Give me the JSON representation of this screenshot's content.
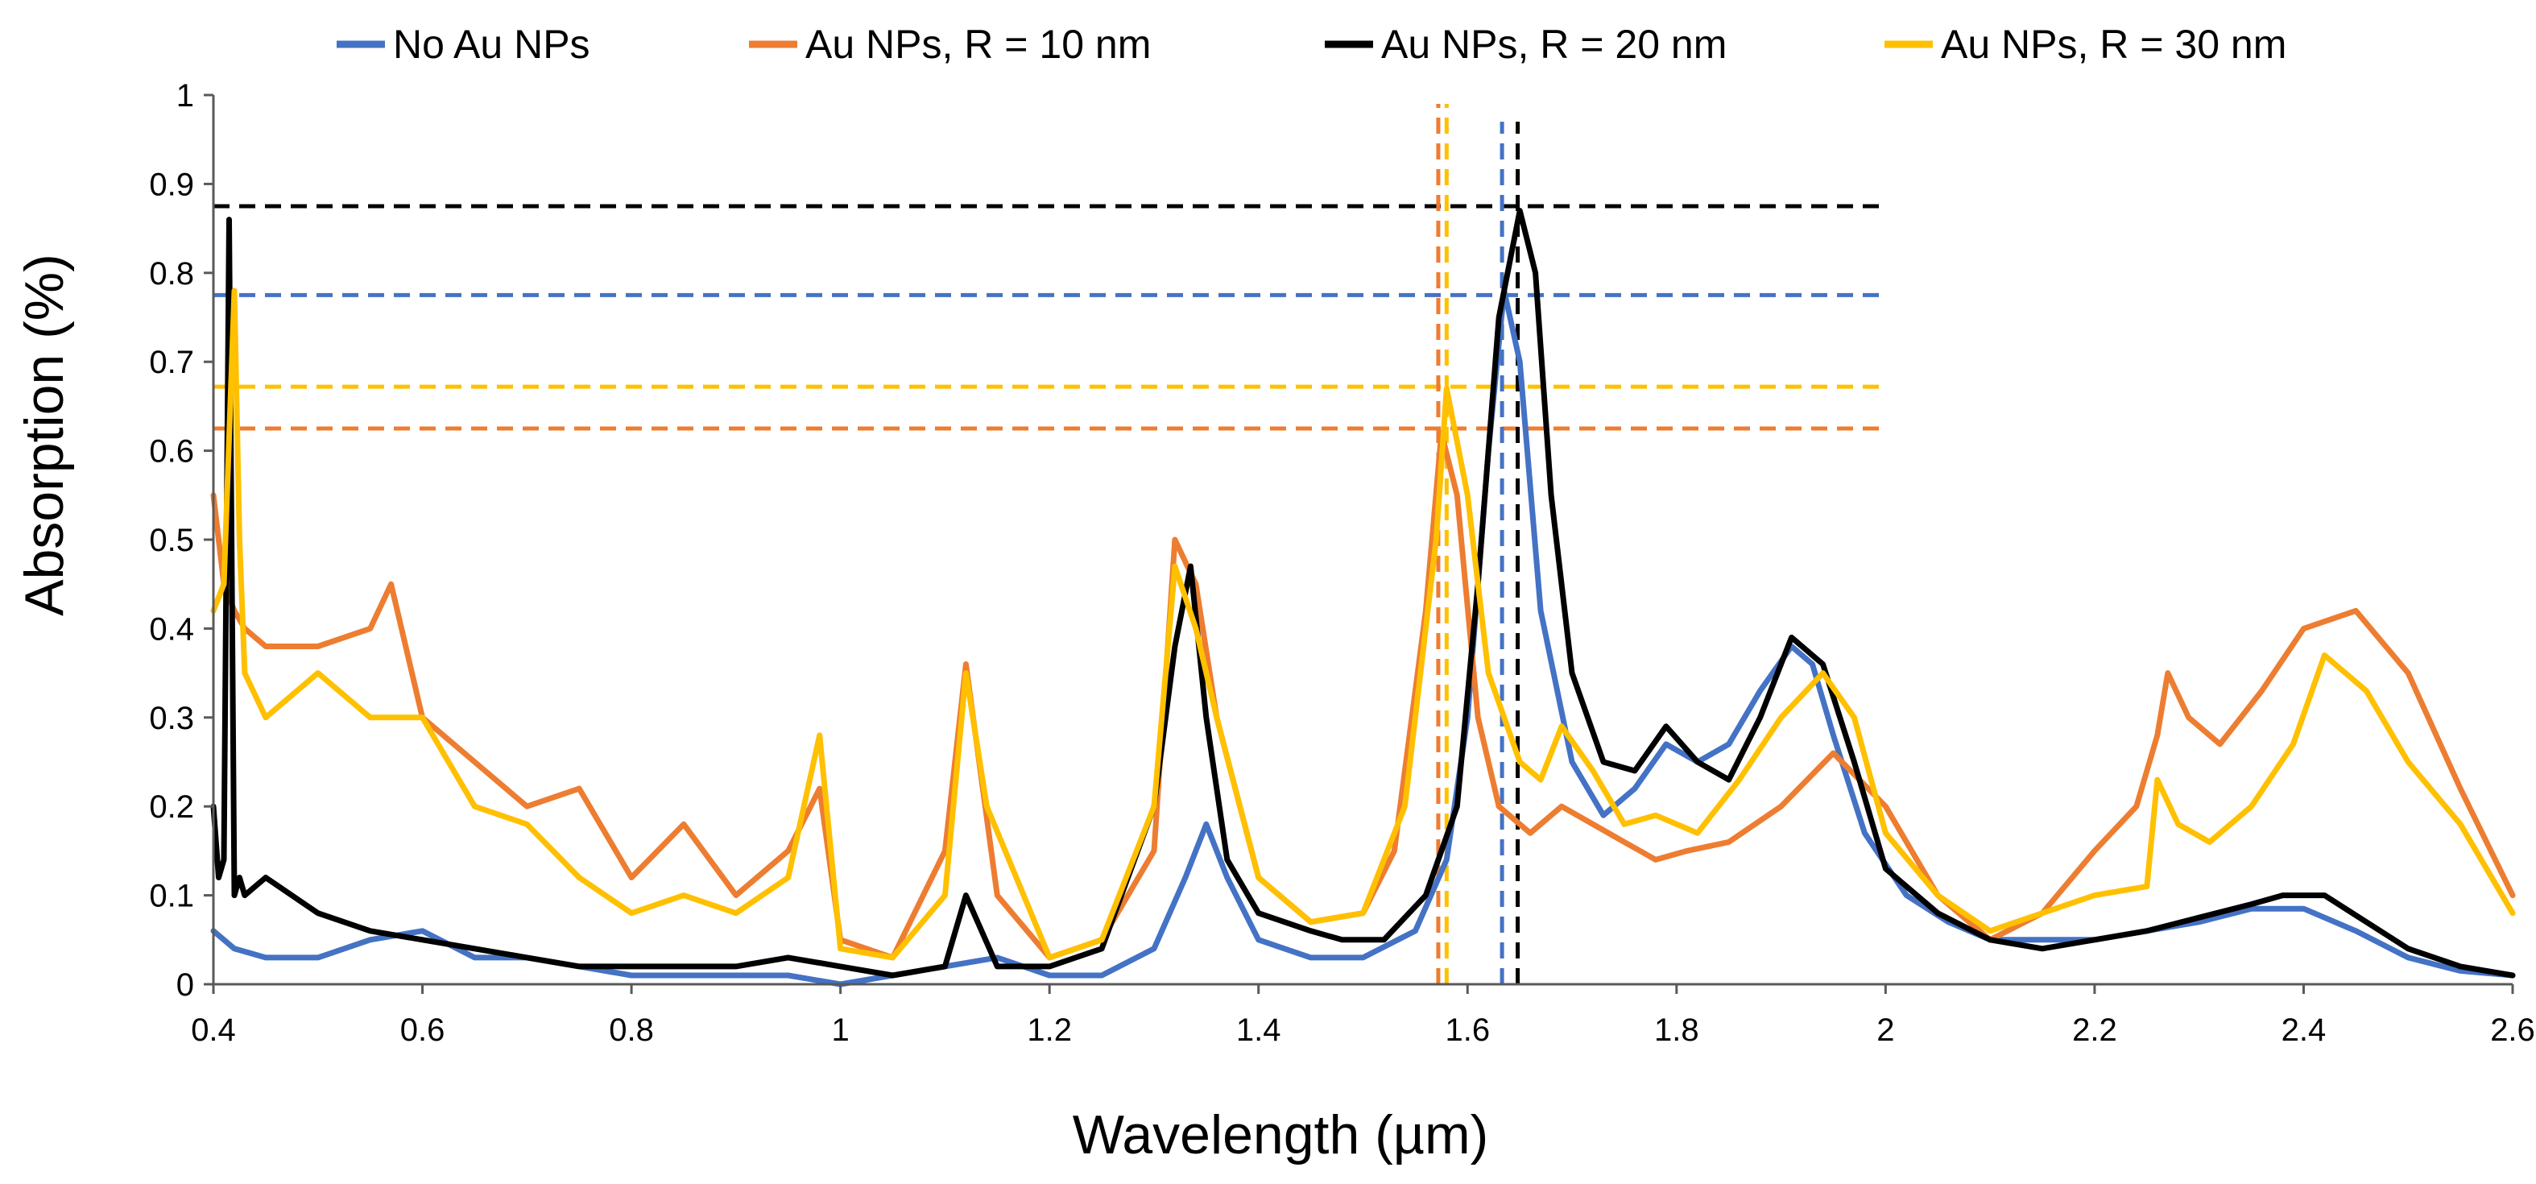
{
  "chart_data": {
    "type": "line",
    "title": "",
    "xlabel": "Wavelength (µm)",
    "ylabel": "Absorption (%)",
    "xlim": [
      0.4,
      2.6
    ],
    "ylim": [
      0,
      1
    ],
    "x_ticks": [
      "0.4",
      "0.6",
      "0.8",
      "1",
      "1.2",
      "1.4",
      "1.6",
      "1.8",
      "2",
      "2.2",
      "2.4",
      "2.6"
    ],
    "y_ticks": [
      "0",
      "0.1",
      "0.2",
      "0.3",
      "0.4",
      "0.5",
      "0.6",
      "0.7",
      "0.8",
      "0.9",
      "1"
    ],
    "legend_position": "top",
    "series": [
      {
        "name": "No Au NPs",
        "color": "#4472C4",
        "x": [
          0.4,
          0.41,
          0.42,
          0.45,
          0.5,
          0.55,
          0.6,
          0.65,
          0.7,
          0.75,
          0.8,
          0.85,
          0.9,
          0.95,
          1.0,
          1.05,
          1.1,
          1.15,
          1.2,
          1.25,
          1.3,
          1.33,
          1.35,
          1.37,
          1.4,
          1.45,
          1.5,
          1.55,
          1.58,
          1.6,
          1.62,
          1.635,
          1.65,
          1.67,
          1.7,
          1.73,
          1.76,
          1.79,
          1.82,
          1.85,
          1.88,
          1.91,
          1.93,
          1.95,
          1.98,
          2.02,
          2.06,
          2.1,
          2.15,
          2.2,
          2.25,
          2.3,
          2.35,
          2.4,
          2.45,
          2.5,
          2.55,
          2.6
        ],
        "y": [
          0.06,
          0.05,
          0.04,
          0.03,
          0.03,
          0.05,
          0.06,
          0.03,
          0.03,
          0.02,
          0.01,
          0.01,
          0.01,
          0.01,
          0.0,
          0.01,
          0.02,
          0.03,
          0.01,
          0.01,
          0.04,
          0.12,
          0.18,
          0.12,
          0.05,
          0.03,
          0.03,
          0.06,
          0.14,
          0.3,
          0.6,
          0.78,
          0.7,
          0.42,
          0.25,
          0.19,
          0.22,
          0.27,
          0.25,
          0.27,
          0.33,
          0.38,
          0.36,
          0.28,
          0.17,
          0.1,
          0.07,
          0.05,
          0.05,
          0.05,
          0.06,
          0.07,
          0.085,
          0.085,
          0.06,
          0.03,
          0.015,
          0.01
        ]
      },
      {
        "name": "Au NPs, R = 10 nm",
        "color": "#ED7D31",
        "x": [
          0.4,
          0.41,
          0.42,
          0.43,
          0.45,
          0.5,
          0.55,
          0.57,
          0.6,
          0.65,
          0.7,
          0.75,
          0.8,
          0.85,
          0.9,
          0.95,
          0.98,
          1.0,
          1.05,
          1.1,
          1.12,
          1.15,
          1.2,
          1.25,
          1.3,
          1.32,
          1.34,
          1.36,
          1.4,
          1.45,
          1.5,
          1.53,
          1.56,
          1.575,
          1.59,
          1.61,
          1.63,
          1.66,
          1.69,
          1.72,
          1.75,
          1.78,
          1.81,
          1.85,
          1.9,
          1.95,
          2.0,
          2.05,
          2.1,
          2.15,
          2.2,
          2.24,
          2.26,
          2.27,
          2.29,
          2.32,
          2.36,
          2.4,
          2.45,
          2.5,
          2.55,
          2.6
        ],
        "y": [
          0.55,
          0.45,
          0.42,
          0.4,
          0.38,
          0.38,
          0.4,
          0.45,
          0.3,
          0.25,
          0.2,
          0.22,
          0.12,
          0.18,
          0.1,
          0.15,
          0.22,
          0.05,
          0.03,
          0.15,
          0.36,
          0.1,
          0.03,
          0.05,
          0.15,
          0.5,
          0.45,
          0.3,
          0.12,
          0.07,
          0.08,
          0.15,
          0.42,
          0.62,
          0.55,
          0.3,
          0.2,
          0.17,
          0.2,
          0.18,
          0.16,
          0.14,
          0.15,
          0.16,
          0.2,
          0.26,
          0.2,
          0.1,
          0.05,
          0.08,
          0.15,
          0.2,
          0.28,
          0.35,
          0.3,
          0.27,
          0.33,
          0.4,
          0.42,
          0.35,
          0.22,
          0.1
        ]
      },
      {
        "name": "Au NPs, R = 20 nm",
        "color": "#000000",
        "x": [
          0.4,
          0.405,
          0.41,
          0.415,
          0.42,
          0.425,
          0.43,
          0.45,
          0.5,
          0.55,
          0.6,
          0.65,
          0.7,
          0.75,
          0.8,
          0.85,
          0.9,
          0.95,
          1.0,
          1.05,
          1.1,
          1.12,
          1.15,
          1.2,
          1.25,
          1.3,
          1.32,
          1.335,
          1.35,
          1.37,
          1.4,
          1.45,
          1.48,
          1.52,
          1.56,
          1.59,
          1.61,
          1.63,
          1.65,
          1.665,
          1.68,
          1.7,
          1.73,
          1.76,
          1.79,
          1.82,
          1.85,
          1.88,
          1.91,
          1.94,
          1.97,
          2.0,
          2.05,
          2.1,
          2.15,
          2.2,
          2.25,
          2.3,
          2.35,
          2.38,
          2.42,
          2.46,
          2.5,
          2.55,
          2.6
        ],
        "y": [
          0.2,
          0.12,
          0.14,
          0.86,
          0.1,
          0.12,
          0.1,
          0.12,
          0.08,
          0.06,
          0.05,
          0.04,
          0.03,
          0.02,
          0.02,
          0.02,
          0.02,
          0.03,
          0.02,
          0.01,
          0.02,
          0.1,
          0.02,
          0.02,
          0.04,
          0.2,
          0.38,
          0.47,
          0.3,
          0.14,
          0.08,
          0.06,
          0.05,
          0.05,
          0.1,
          0.2,
          0.45,
          0.75,
          0.87,
          0.8,
          0.55,
          0.35,
          0.25,
          0.24,
          0.29,
          0.25,
          0.23,
          0.3,
          0.39,
          0.36,
          0.25,
          0.13,
          0.08,
          0.05,
          0.04,
          0.05,
          0.06,
          0.075,
          0.09,
          0.1,
          0.1,
          0.07,
          0.04,
          0.02,
          0.01
        ]
      },
      {
        "name": "Au NPs, R = 30 nm",
        "color": "#FFC000",
        "x": [
          0.4,
          0.41,
          0.42,
          0.425,
          0.43,
          0.45,
          0.5,
          0.55,
          0.6,
          0.65,
          0.7,
          0.75,
          0.8,
          0.85,
          0.9,
          0.95,
          0.98,
          1.0,
          1.05,
          1.1,
          1.12,
          1.14,
          1.2,
          1.25,
          1.3,
          1.32,
          1.34,
          1.36,
          1.4,
          1.45,
          1.5,
          1.54,
          1.57,
          1.58,
          1.6,
          1.62,
          1.65,
          1.67,
          1.69,
          1.72,
          1.75,
          1.78,
          1.82,
          1.86,
          1.9,
          1.94,
          1.97,
          2.0,
          2.05,
          2.1,
          2.15,
          2.2,
          2.25,
          2.26,
          2.28,
          2.31,
          2.35,
          2.39,
          2.42,
          2.46,
          2.5,
          2.55,
          2.6
        ],
        "y": [
          0.42,
          0.45,
          0.78,
          0.5,
          0.35,
          0.3,
          0.35,
          0.3,
          0.3,
          0.2,
          0.18,
          0.12,
          0.08,
          0.1,
          0.08,
          0.12,
          0.28,
          0.04,
          0.03,
          0.1,
          0.35,
          0.2,
          0.03,
          0.05,
          0.2,
          0.47,
          0.4,
          0.3,
          0.12,
          0.07,
          0.08,
          0.2,
          0.5,
          0.67,
          0.55,
          0.35,
          0.25,
          0.23,
          0.29,
          0.24,
          0.18,
          0.19,
          0.17,
          0.23,
          0.3,
          0.35,
          0.3,
          0.17,
          0.1,
          0.06,
          0.08,
          0.1,
          0.11,
          0.23,
          0.18,
          0.16,
          0.2,
          0.27,
          0.37,
          0.33,
          0.25,
          0.18,
          0.08
        ]
      }
    ],
    "reference_lines": [
      {
        "orientation": "horizontal",
        "value": 0.875,
        "color": "#000000",
        "x_from": 0.4,
        "x_to": 2.0
      },
      {
        "orientation": "horizontal",
        "value": 0.775,
        "color": "#4472C4",
        "x_from": 0.4,
        "x_to": 2.0
      },
      {
        "orientation": "horizontal",
        "value": 0.672,
        "color": "#FFC000",
        "x_from": 0.4,
        "x_to": 2.0
      },
      {
        "orientation": "horizontal",
        "value": 0.625,
        "color": "#ED7D31",
        "x_from": 0.4,
        "x_to": 2.0
      },
      {
        "orientation": "vertical",
        "value": 1.572,
        "color": "#ED7D31",
        "y_from": 0,
        "y_to": 0.99
      },
      {
        "orientation": "vertical",
        "value": 1.58,
        "color": "#FFC000",
        "y_from": 0,
        "y_to": 0.99
      },
      {
        "orientation": "vertical",
        "value": 1.633,
        "color": "#4472C4",
        "y_from": 0,
        "y_to": 0.97
      },
      {
        "orientation": "vertical",
        "value": 1.648,
        "color": "#000000",
        "y_from": 0,
        "y_to": 0.97
      }
    ]
  }
}
